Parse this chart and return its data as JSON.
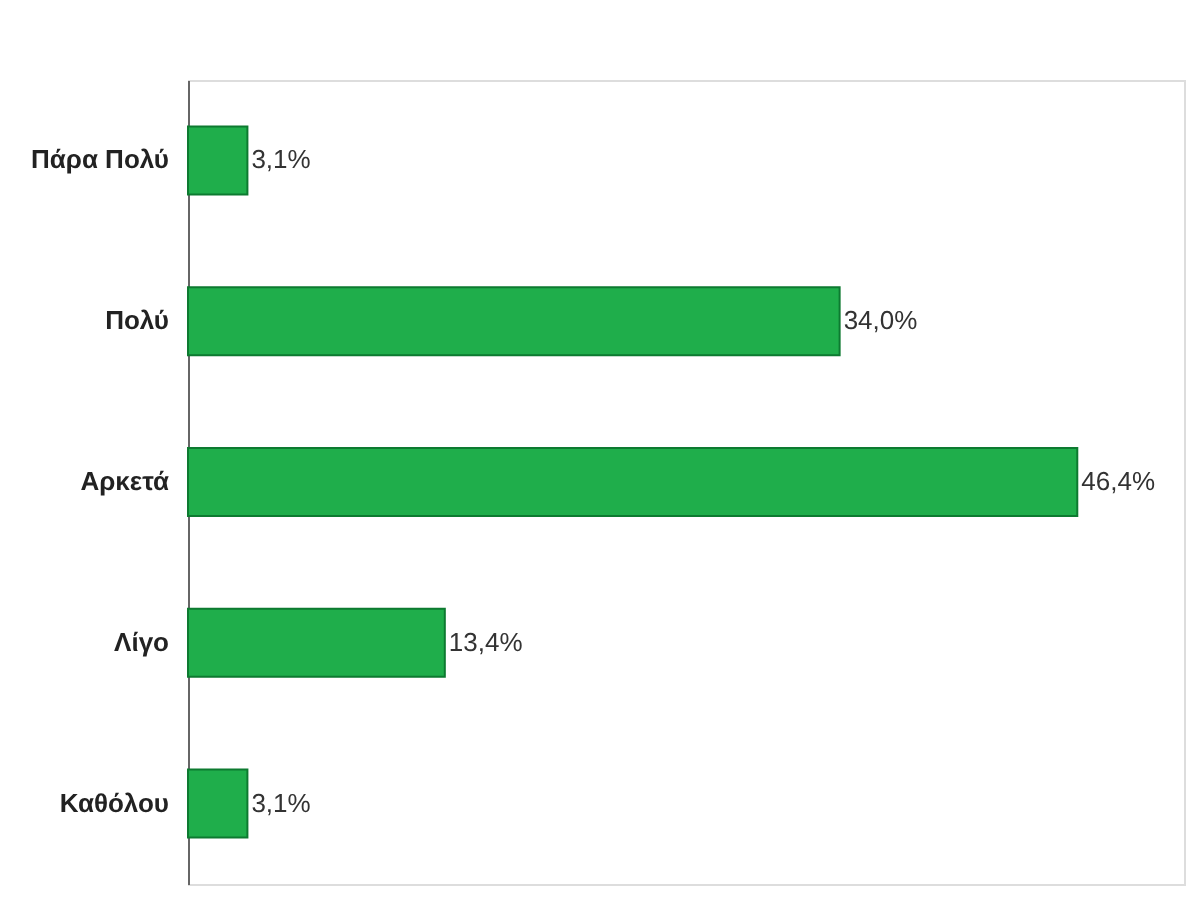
{
  "chart_data": {
    "type": "bar",
    "orientation": "horizontal",
    "categories": [
      "Πάρα Πολύ",
      "Πολύ",
      "Αρκετά",
      "Λίγο",
      "Καθόλου"
    ],
    "values": [
      3.1,
      34.0,
      46.4,
      13.4,
      3.1
    ],
    "value_labels": [
      "3,1%",
      "34,0%",
      "46,4%",
      "13,4%",
      "3,1%"
    ],
    "color": "#1fae4b",
    "grid": false
  }
}
